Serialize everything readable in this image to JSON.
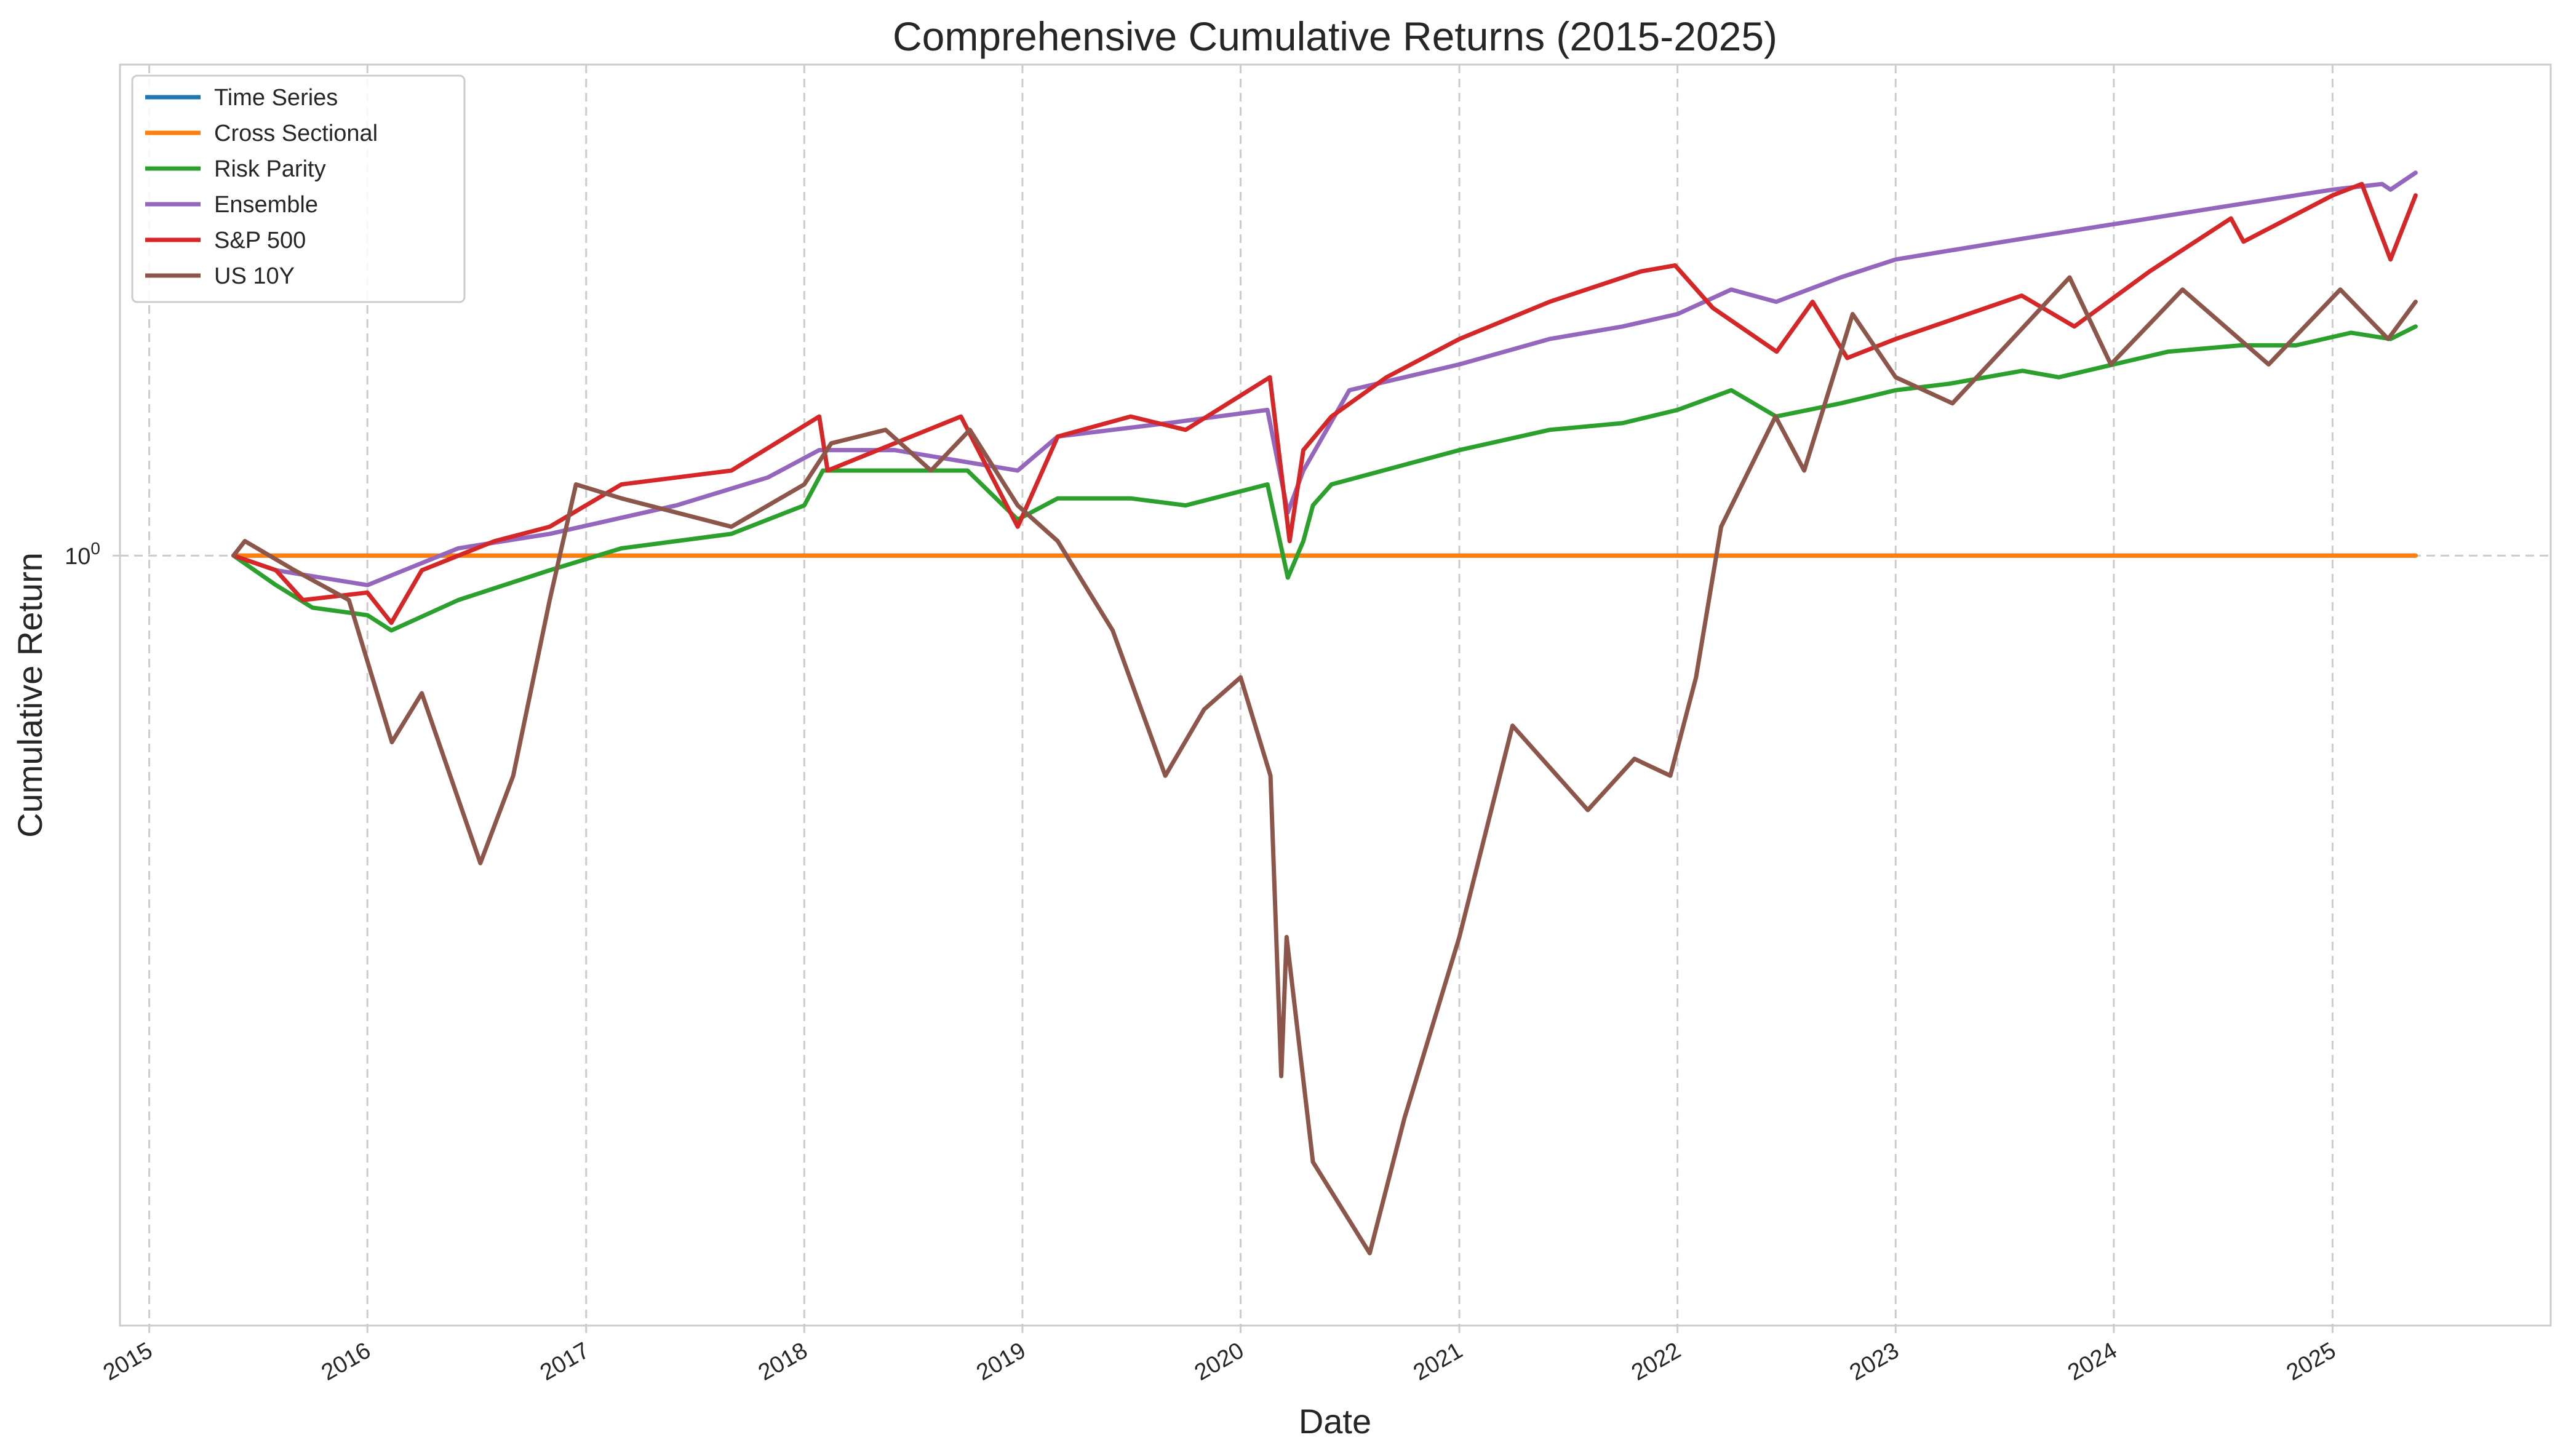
{
  "chart_data": {
    "type": "line",
    "title": "Comprehensive Cumulative Returns (2015-2025)",
    "xlabel": "Date",
    "ylabel": "Cumulative Return",
    "yscale": "log",
    "y_tick_labels": [
      "10^0"
    ],
    "x_tick_labels": [
      "2015",
      "2016",
      "2017",
      "2018",
      "2019",
      "2020",
      "2021",
      "2022",
      "2023",
      "2024",
      "2025"
    ],
    "xlim": [
      "2014-11-13",
      "2026-01-01"
    ],
    "ylim": [
      0.59,
      1.4
    ],
    "grid": true,
    "legend_position": "top-left",
    "series": [
      {
        "name": "Time Series",
        "color": "#1f77b4",
        "x": [
          "2015-05-22",
          "2025-05-20"
        ],
        "y": [
          1.0,
          1.0
        ]
      },
      {
        "name": "Cross Sectional",
        "color": "#ff7f0e",
        "x": [
          "2015-05-22",
          "2025-05-20"
        ],
        "y": [
          1.0,
          1.0
        ]
      },
      {
        "name": "Risk Parity",
        "color": "#2ca02c",
        "x": [
          "2015-05-22",
          "2015-08-01",
          "2015-10-01",
          "2016-01-01",
          "2016-02-10",
          "2016-06-01",
          "2016-11-01",
          "2017-03-01",
          "2017-09-01",
          "2018-01-01",
          "2018-02-01",
          "2018-06-01",
          "2018-10-01",
          "2018-12-24",
          "2019-03-01",
          "2019-07-01",
          "2019-10-01",
          "2020-02-15",
          "2020-03-20",
          "2020-04-15",
          "2020-05-01",
          "2020-06-01",
          "2021-01-01",
          "2021-06-01",
          "2021-10-01",
          "2022-01-01",
          "2022-04-01",
          "2022-06-15",
          "2022-10-01",
          "2023-01-01",
          "2023-04-01",
          "2023-08-01",
          "2023-10-01",
          "2024-01-01",
          "2024-04-01",
          "2024-08-01",
          "2024-11-01",
          "2025-02-01",
          "2025-04-08",
          "2025-05-20"
        ],
        "y": [
          1.0,
          0.98,
          0.965,
          0.96,
          0.95,
          0.97,
          0.99,
          1.005,
          1.015,
          1.035,
          1.06,
          1.06,
          1.06,
          1.025,
          1.04,
          1.04,
          1.035,
          1.05,
          0.985,
          1.01,
          1.035,
          1.05,
          1.075,
          1.09,
          1.095,
          1.105,
          1.12,
          1.1,
          1.11,
          1.12,
          1.125,
          1.135,
          1.13,
          1.14,
          1.15,
          1.155,
          1.155,
          1.165,
          1.16,
          1.17
        ]
      },
      {
        "name": "Ensemble",
        "color": "#9467bd",
        "x": [
          "2015-05-22",
          "2015-08-01",
          "2016-01-01",
          "2016-06-01",
          "2016-11-01",
          "2017-06-01",
          "2017-11-01",
          "2018-01-26",
          "2018-06-01",
          "2018-12-24",
          "2019-03-01",
          "2019-09-01",
          "2020-02-15",
          "2020-03-20",
          "2020-04-15",
          "2020-07-01",
          "2021-01-01",
          "2021-06-01",
          "2021-10-01",
          "2022-01-01",
          "2022-04-01",
          "2022-06-15",
          "2022-10-01",
          "2023-01-01",
          "2023-07-01",
          "2024-01-01",
          "2024-07-01",
          "2025-01-01",
          "2025-03-25",
          "2025-04-08",
          "2025-05-20"
        ],
        "y": [
          1.0,
          0.99,
          0.98,
          1.005,
          1.015,
          1.035,
          1.055,
          1.075,
          1.075,
          1.06,
          1.085,
          1.095,
          1.105,
          1.03,
          1.06,
          1.12,
          1.14,
          1.16,
          1.17,
          1.18,
          1.2,
          1.19,
          1.21,
          1.225,
          1.24,
          1.255,
          1.27,
          1.285,
          1.29,
          1.285,
          1.3
        ]
      },
      {
        "name": "S&P 500",
        "color": "#d62728",
        "x": [
          "2015-05-22",
          "2015-08-01",
          "2015-09-15",
          "2016-01-01",
          "2016-02-10",
          "2016-04-01",
          "2016-08-01",
          "2016-11-01",
          "2017-03-01",
          "2017-09-01",
          "2018-01-26",
          "2018-02-09",
          "2018-06-01",
          "2018-09-20",
          "2018-12-24",
          "2019-03-01",
          "2019-07-01",
          "2019-10-01",
          "2020-02-19",
          "2020-03-23",
          "2020-04-15",
          "2020-06-01",
          "2020-09-01",
          "2021-01-01",
          "2021-06-01",
          "2021-11-01",
          "2021-12-28",
          "2022-03-01",
          "2022-06-16",
          "2022-08-15",
          "2022-10-12",
          "2023-01-01",
          "2023-07-31",
          "2023-10-27",
          "2024-03-01",
          "2024-07-15",
          "2024-08-05",
          "2025-01-01",
          "2025-02-19",
          "2025-04-08",
          "2025-05-20"
        ],
        "y": [
          1.0,
          0.99,
          0.97,
          0.975,
          0.955,
          0.99,
          1.01,
          1.02,
          1.05,
          1.06,
          1.1,
          1.06,
          1.08,
          1.1,
          1.02,
          1.085,
          1.1,
          1.09,
          1.13,
          1.01,
          1.075,
          1.1,
          1.13,
          1.16,
          1.19,
          1.215,
          1.22,
          1.185,
          1.15,
          1.19,
          1.145,
          1.16,
          1.195,
          1.17,
          1.215,
          1.26,
          1.24,
          1.28,
          1.29,
          1.225,
          1.28
        ]
      },
      {
        "name": "US 10Y",
        "color": "#8c564b",
        "x": [
          "2015-05-22",
          "2015-06-10",
          "2015-09-01",
          "2015-12-01",
          "2016-02-11",
          "2016-04-01",
          "2016-07-08",
          "2016-09-01",
          "2016-11-01",
          "2016-12-15",
          "2017-03-01",
          "2017-09-01",
          "2018-01-01",
          "2018-02-15",
          "2018-05-17",
          "2018-08-01",
          "2018-10-05",
          "2018-12-24",
          "2019-03-01",
          "2019-06-01",
          "2019-08-28",
          "2019-11-01",
          "2020-01-01",
          "2020-02-20",
          "2020-03-09",
          "2020-03-18",
          "2020-05-01",
          "2020-08-04",
          "2020-10-01",
          "2021-01-01",
          "2021-03-31",
          "2021-08-04",
          "2021-10-21",
          "2021-12-20",
          "2022-02-01",
          "2022-03-15",
          "2022-06-14",
          "2022-08-01",
          "2022-10-21",
          "2023-01-01",
          "2023-04-06",
          "2023-10-19",
          "2023-12-27",
          "2024-04-25",
          "2024-09-16",
          "2025-01-14",
          "2025-04-04",
          "2025-05-20"
        ],
        "y": [
          1.0,
          1.01,
          0.99,
          0.97,
          0.88,
          0.91,
          0.81,
          0.86,
          0.97,
          1.05,
          1.04,
          1.02,
          1.05,
          1.08,
          1.09,
          1.06,
          1.09,
          1.035,
          1.01,
          0.95,
          0.86,
          0.9,
          0.92,
          0.86,
          0.7,
          0.77,
          0.66,
          0.62,
          0.68,
          0.77,
          0.89,
          0.84,
          0.87,
          0.86,
          0.92,
          1.02,
          1.1,
          1.06,
          1.18,
          1.13,
          1.11,
          1.21,
          1.14,
          1.2,
          1.14,
          1.2,
          1.16,
          1.19
        ]
      }
    ]
  }
}
